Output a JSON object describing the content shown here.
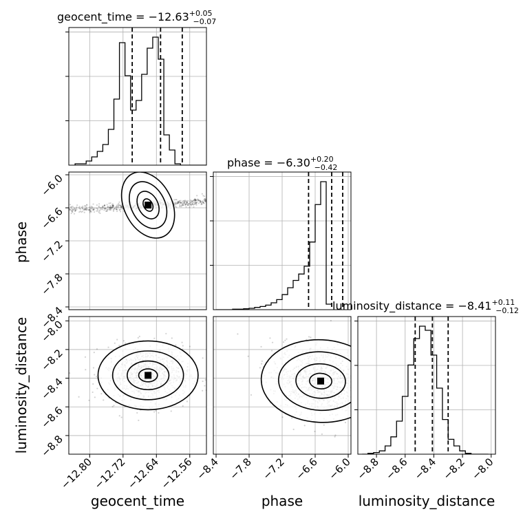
{
  "chart_data": {
    "type": "corner",
    "parameters": [
      {
        "name": "geocent_time",
        "median": "−12.63",
        "upper": "+0.05",
        "lower": "−0.07",
        "lim": [
          -12.85,
          -12.52
        ],
        "ticks": [
          "−12.80",
          "−12.72",
          "−12.64",
          "−12.56"
        ],
        "tick_values": [
          -12.8,
          -12.72,
          -12.64,
          -12.56
        ],
        "quantiles": [
          -12.698,
          -12.63,
          -12.578
        ]
      },
      {
        "name": "phase",
        "median": "−6.30",
        "upper": "+0.20",
        "lower": "−0.42",
        "lim": [
          -8.45,
          -5.95
        ],
        "ticks": [
          "−8.4",
          "−7.8",
          "−7.2",
          "−6.6",
          "−6.0"
        ],
        "tick_values": [
          -8.4,
          -7.8,
          -7.2,
          -6.6,
          -6.0
        ],
        "quantiles": [
          -6.72,
          -6.3,
          -6.1
        ]
      },
      {
        "name": "luminosity_distance",
        "median": "−8.41",
        "upper": "+0.11",
        "lower": "−0.12",
        "lim": [
          -8.93,
          -7.97
        ],
        "ticks": [
          "−8.8",
          "−8.6",
          "−8.4",
          "−8.2",
          "−8.0"
        ],
        "tick_values": [
          -8.8,
          -8.6,
          -8.4,
          -8.2,
          -8.0
        ],
        "quantiles": [
          -8.53,
          -8.41,
          -8.3
        ]
      }
    ],
    "histograms": [
      {
        "param": "geocent_time",
        "edges_start": -12.835,
        "bin_width": 0.0133,
        "counts": [
          1,
          1,
          3,
          6,
          10,
          15,
          26,
          48,
          89,
          65,
          40,
          47,
          66,
          85,
          93,
          77,
          22,
          11,
          1,
          0,
          0,
          0,
          0,
          0,
          0
        ]
      },
      {
        "param": "phase",
        "edges_start": -8.4,
        "bin_width": 0.1,
        "counts": [
          0,
          0,
          0,
          1,
          1,
          2,
          3,
          5,
          7,
          10,
          15,
          22,
          33,
          48,
          64,
          78,
          95,
          148,
          230,
          280,
          12
        ]
      },
      {
        "param": "luminosity_distance",
        "edges_start": -8.9,
        "bin_width": 0.04,
        "counts": [
          0,
          1,
          2,
          4,
          10,
          21,
          40,
          70,
          108,
          140,
          155,
          150,
          120,
          80,
          42,
          18,
          10,
          4,
          1,
          0,
          0,
          0
        ]
      }
    ],
    "xlabel_bottom": [
      "geocent_time",
      "phase",
      "luminosity_distance"
    ],
    "ylabel_left": [
      "phase",
      "luminosity_distance"
    ],
    "grid": true,
    "contour_levels": 4
  }
}
